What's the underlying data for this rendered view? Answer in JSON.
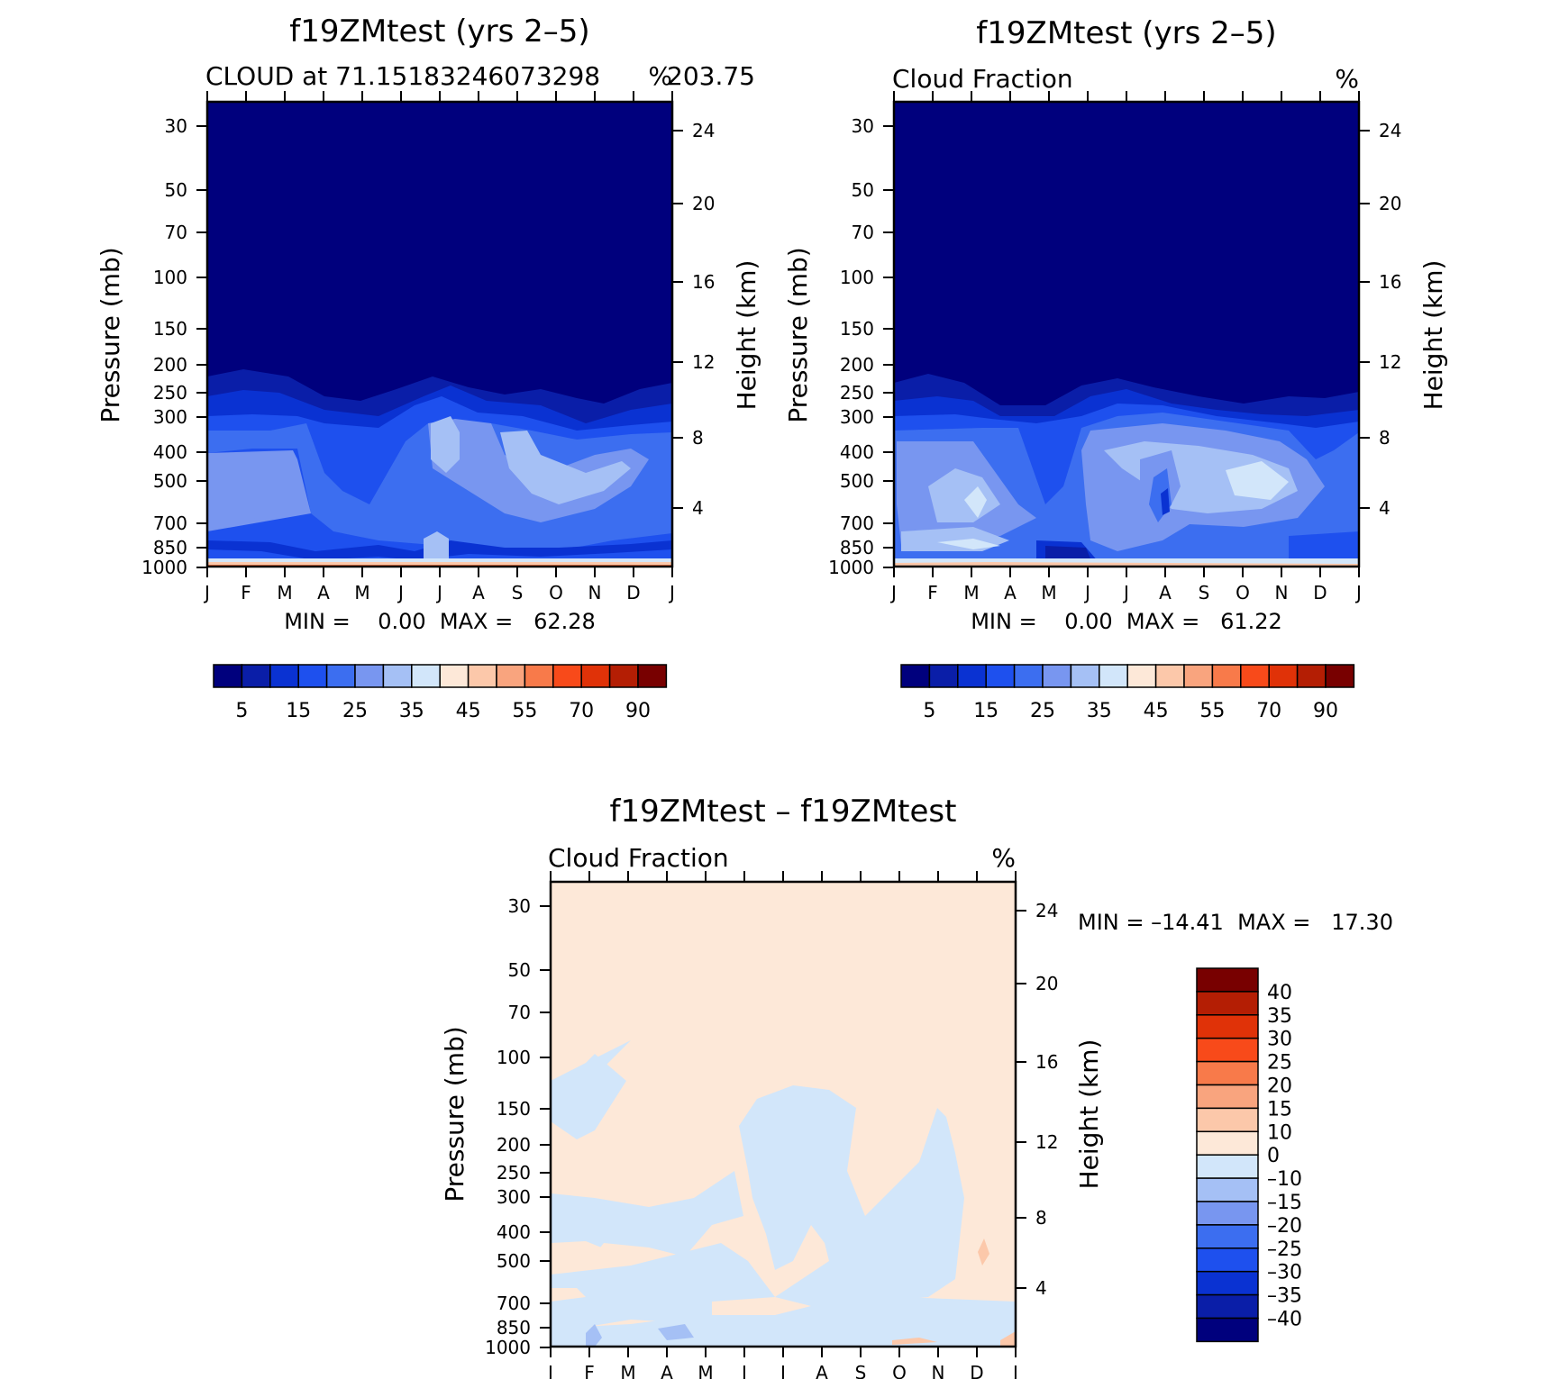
{
  "chart_data": [
    {
      "type": "contour",
      "title": "f19ZMtest (yrs 2–5)",
      "subtitle_left": "CLOUD at 71.15183246073298",
      "subtitle_right": "%",
      "subtitle_extra": "203.75",
      "ylabel": "Pressure (mb)",
      "ylabel_right": "Height (km)",
      "x_ticks": [
        "J",
        "F",
        "M",
        "A",
        "M",
        "J",
        "J",
        "A",
        "S",
        "O",
        "N",
        "D",
        "J"
      ],
      "y_ticks": [
        "30",
        "50",
        "70",
        "100",
        "150",
        "200",
        "250",
        "300",
        "400",
        "500",
        "700",
        "850",
        "1000"
      ],
      "y_ticks_right": [
        "24",
        "20",
        "16",
        "12",
        "8",
        "4"
      ],
      "min_max": "MIN =    0.00  MAX =   62.28",
      "levels": [
        0,
        5,
        10,
        15,
        20,
        25,
        30,
        35,
        40,
        45,
        50,
        55,
        60,
        70,
        80,
        90
      ],
      "colorbar_labels": [
        "5",
        "15",
        "25",
        "35",
        "45",
        "55",
        "70",
        "90"
      ]
    },
    {
      "type": "contour",
      "title": "f19ZMtest (yrs 2–5)",
      "subtitle_left": "Cloud Fraction",
      "subtitle_right": "%",
      "ylabel": "Pressure (mb)",
      "ylabel_right": "Height (km)",
      "x_ticks": [
        "J",
        "F",
        "M",
        "A",
        "M",
        "J",
        "J",
        "A",
        "S",
        "O",
        "N",
        "D",
        "J"
      ],
      "y_ticks": [
        "30",
        "50",
        "70",
        "100",
        "150",
        "200",
        "250",
        "300",
        "400",
        "500",
        "700",
        "850",
        "1000"
      ],
      "y_ticks_right": [
        "24",
        "20",
        "16",
        "12",
        "8",
        "4"
      ],
      "min_max": "MIN =    0.00  MAX =   61.22",
      "levels": [
        0,
        5,
        10,
        15,
        20,
        25,
        30,
        35,
        40,
        45,
        50,
        55,
        60,
        70,
        80,
        90
      ],
      "colorbar_labels": [
        "5",
        "15",
        "25",
        "35",
        "45",
        "55",
        "70",
        "90"
      ]
    },
    {
      "type": "contour",
      "title": "f19ZMtest – f19ZMtest",
      "subtitle_left": "Cloud Fraction",
      "subtitle_right": "%",
      "ylabel": "Pressure (mb)",
      "ylabel_right": "Height (km)",
      "x_ticks": [
        "J",
        "F",
        "M",
        "A",
        "M",
        "J",
        "J",
        "A",
        "S",
        "O",
        "N",
        "D",
        "J"
      ],
      "y_ticks": [
        "30",
        "50",
        "70",
        "100",
        "150",
        "200",
        "250",
        "300",
        "400",
        "500",
        "700",
        "850",
        "1000"
      ],
      "y_ticks_right": [
        "24",
        "20",
        "16",
        "12",
        "8",
        "4"
      ],
      "min_max": "MIN = –14.41  MAX =   17.30",
      "colorbar_labels": [
        "40",
        "35",
        "30",
        "25",
        "20",
        "15",
        "10",
        "0",
        "–10",
        "–15",
        "–20",
        "–25",
        "–30",
        "–35",
        "–40"
      ]
    }
  ],
  "colors": {
    "abs_scale": [
      "#00007d",
      "#0a1ea8",
      "#0a32d2",
      "#1e50ee",
      "#3c6ef0",
      "#7896f0",
      "#a5c0f5",
      "#d2e6fa",
      "#fde8d8",
      "#fcc8aa",
      "#f9a47e",
      "#f87a4a",
      "#f84a1a",
      "#e03208",
      "#b41e04",
      "#780000"
    ],
    "diff_scale": [
      "#780000",
      "#b41e04",
      "#e03208",
      "#f84a1a",
      "#f87a4a",
      "#f9a47e",
      "#fcc8aa",
      "#fde8d8",
      "#d2e6fa",
      "#a5c0f5",
      "#7896f0",
      "#3c6ef0",
      "#1e50ee",
      "#0a32d2",
      "#0a1ea8",
      "#00007d"
    ]
  }
}
